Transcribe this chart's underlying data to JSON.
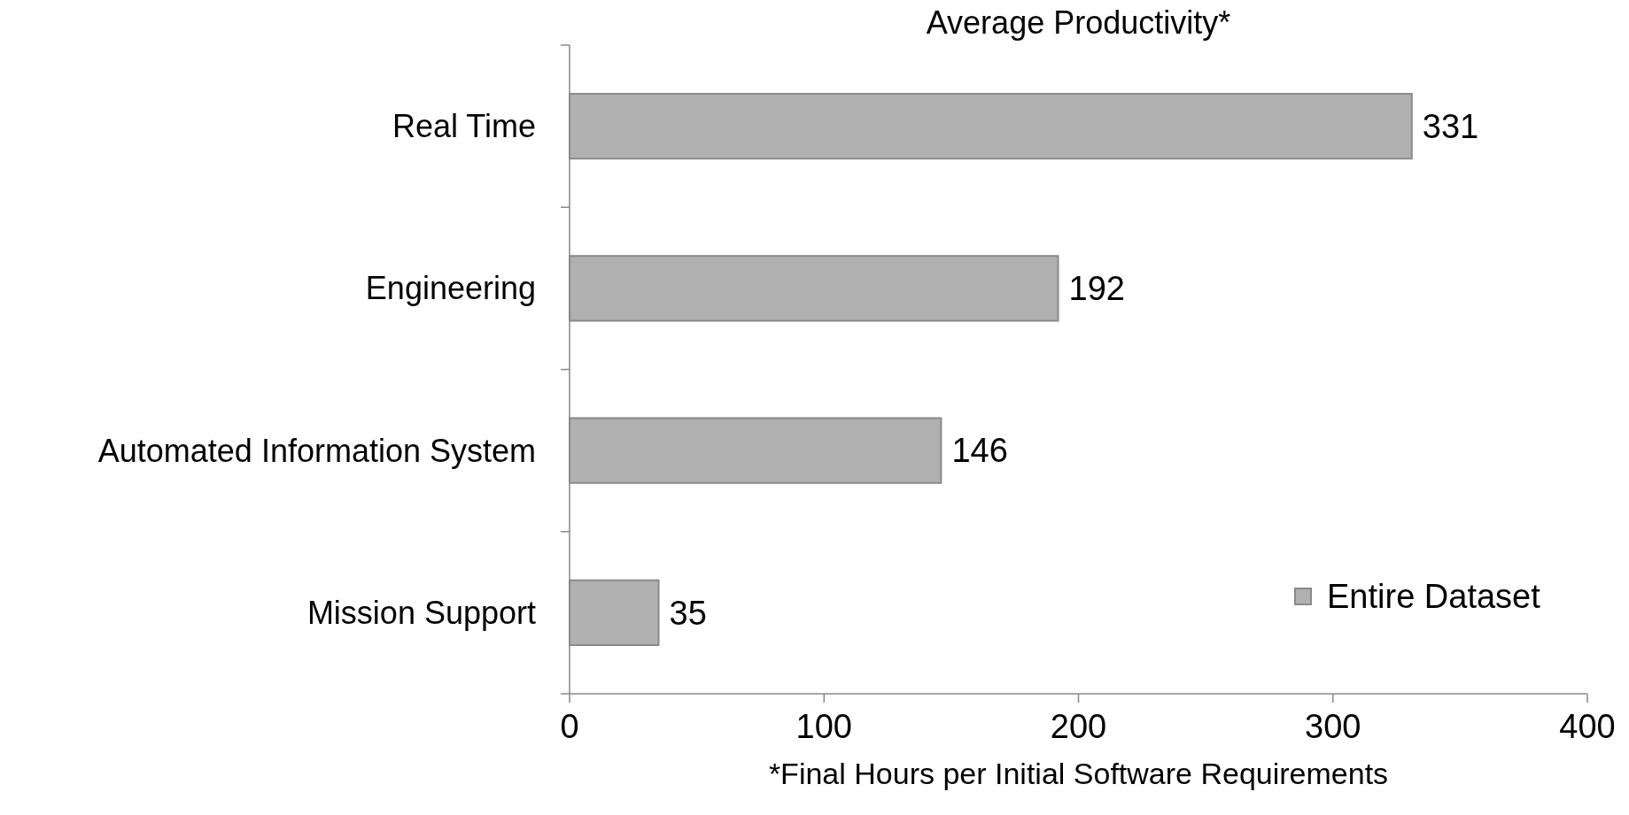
{
  "chart_data": {
    "type": "bar",
    "title": "Average Productivity*",
    "orientation": "horizontal",
    "categories": [
      "Real Time",
      "Engineering",
      "Automated Information System",
      "Mission Support"
    ],
    "series": [
      {
        "name": "Entire Dataset",
        "color": "#b0b0b0",
        "values": [
          331,
          192,
          146,
          35
        ]
      }
    ],
    "xlim": [
      0,
      400
    ],
    "xticks": [
      0,
      100,
      200,
      300,
      400
    ],
    "xlabel": "*Final Hours per Initial Software Requirements",
    "data_labels": true,
    "legend": "bottom right"
  }
}
